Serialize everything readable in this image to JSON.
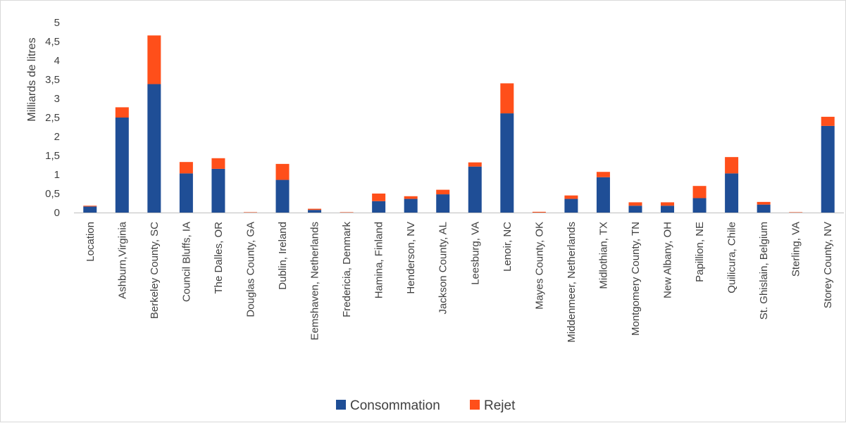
{
  "chart_data": {
    "type": "bar",
    "stacked": true,
    "ylabel": "Milliards de litres",
    "ylim": [
      0,
      5
    ],
    "yticks": [
      "0",
      "0,5",
      "1",
      "1,5",
      "2",
      "2,5",
      "3",
      "3,5",
      "4",
      "4,5",
      "5"
    ],
    "grid": false,
    "legend_position": "bottom",
    "categories": [
      "Location",
      "Ashburn,Virginia",
      "Berkeley County, SC",
      "Council Bluffs, IA",
      "The Dalles, OR",
      "Douglas County, GA",
      "Dublin, Ireland",
      "Eemshaven, Netherlands",
      "Fredericia, Denmark",
      "Hamina, Finland",
      "Henderson, NV",
      "Jackson County, AL",
      "Leesburg, VA",
      "Lenoir, NC",
      "Mayes County, OK",
      "Middenmeer, Netherlands",
      "Midlothian, TX",
      "Montgomery County, TN",
      "New Albany, OH",
      "Papillion, NE",
      "Quilicura, Chile",
      "St. Ghislain, Belgium",
      "Sterling, VA",
      "Storey County, NV"
    ],
    "series": [
      {
        "name": "Consommation",
        "color": "#1f4e96",
        "values": [
          0.16,
          2.5,
          3.38,
          1.03,
          1.15,
          0.0,
          0.86,
          0.07,
          0.0,
          0.3,
          0.36,
          0.48,
          1.21,
          2.61,
          0.0,
          0.36,
          0.93,
          0.18,
          0.18,
          0.38,
          1.03,
          0.21,
          0.0,
          2.28
        ]
      },
      {
        "name": "Rejet",
        "color": "#ff4f1a",
        "values": [
          0.02,
          0.27,
          1.28,
          0.3,
          0.28,
          0.01,
          0.42,
          0.03,
          0.01,
          0.2,
          0.07,
          0.12,
          0.11,
          0.79,
          0.02,
          0.09,
          0.14,
          0.09,
          0.09,
          0.32,
          0.43,
          0.07,
          0.01,
          0.24
        ]
      }
    ]
  }
}
